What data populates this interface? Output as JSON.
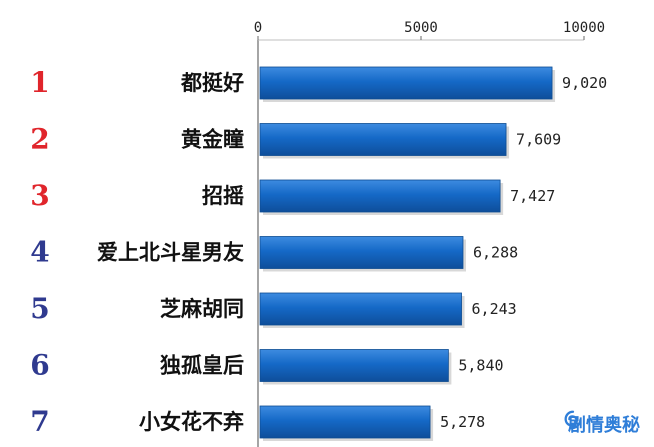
{
  "chart_data": {
    "type": "bar",
    "orientation": "horizontal",
    "categories": [
      "都挺好",
      "黄金瞳",
      "招摇",
      "爱上北斗星男友",
      "芝麻胡同",
      "独孤皇后",
      "小女花不弃"
    ],
    "ranks": [
      "1",
      "2",
      "3",
      "4",
      "5",
      "6",
      "7"
    ],
    "values": [
      9020,
      7609,
      7427,
      6288,
      6243,
      5840,
      5278
    ],
    "value_labels": [
      "9,020",
      "7,609",
      "7,427",
      "6,288",
      "6,243",
      "5,840",
      "5,278"
    ],
    "xticks": [
      0,
      5000,
      10000
    ],
    "xtick_labels": [
      "0",
      "5000",
      "10000"
    ],
    "xlim": [
      0,
      10000
    ],
    "grid": false,
    "title": "",
    "xlabel": "",
    "ylabel": "",
    "colors": {
      "bar": "#1569C7",
      "rank_top": "#E0252B",
      "rank_other": "#2F3A8F",
      "axis": "#6A6A6A",
      "text": "#222222"
    }
  },
  "watermark": {
    "text": "剧情奥秘",
    "icon": "watermark-swirl-icon",
    "color": "#2F7ED8"
  }
}
